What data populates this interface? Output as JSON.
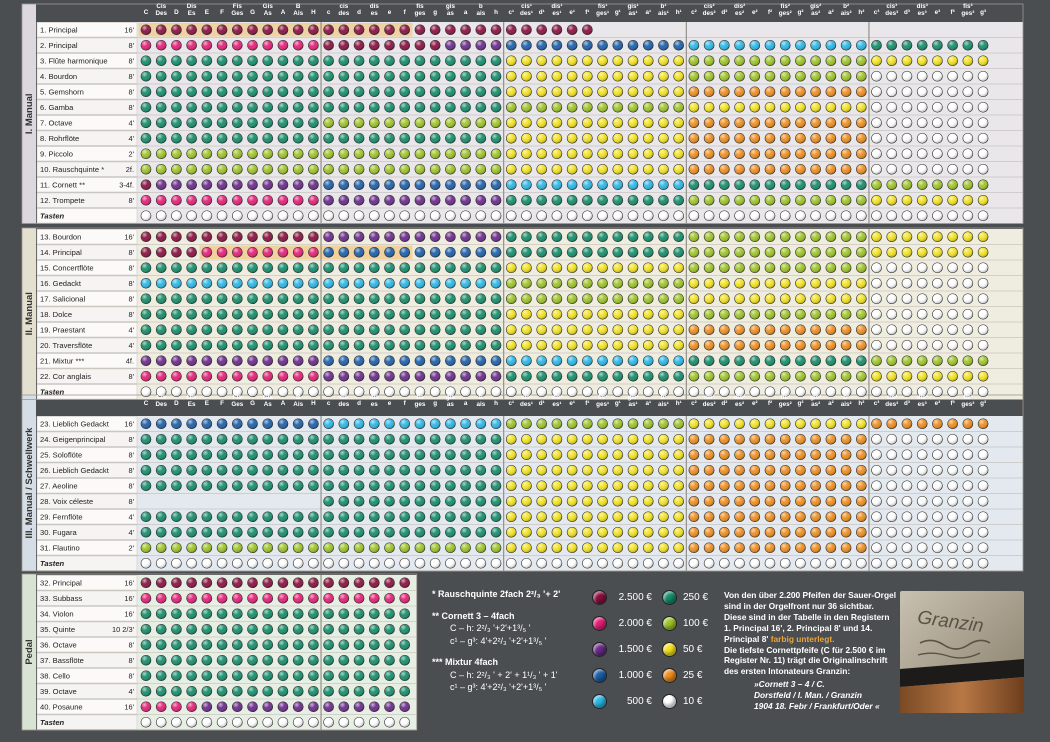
{
  "columns": [
    "C",
    "Cis Des",
    "D",
    "Dis Es",
    "E",
    "F",
    "Fis Ges",
    "G",
    "Gis As",
    "A",
    "B Ais",
    "H",
    "c",
    "cis des",
    "d",
    "dis es",
    "e",
    "f",
    "fis ges",
    "g",
    "gis as",
    "a",
    "b ais",
    "h",
    "c¹",
    "cis¹ des¹",
    "d¹",
    "dis¹ es¹",
    "e¹",
    "f¹",
    "fis¹ ges¹",
    "g¹",
    "gis¹ as¹",
    "a¹",
    "b¹ ais¹",
    "h¹",
    "c²",
    "cis² des²",
    "d²",
    "dis² es²",
    "e²",
    "f²",
    "fis² ges²",
    "g²",
    "gis² as²",
    "a²",
    "b² ais²",
    "h²",
    "c³",
    "cis³ des³",
    "d³",
    "dis³ es³",
    "e³",
    "f³",
    "fis³ ges³",
    "g³"
  ],
  "palette": {
    "2500": "#8a0f3f",
    "2000": "#e41f76",
    "1500": "#6a2a8a",
    "1000": "#1c5fa9",
    "500": "#2ab7e6",
    "250": "#148d6a",
    "100": "#9dc427",
    "50": "#f2e21f",
    "25": "#ef8d1e",
    "10": "#ffffff"
  },
  "manuals": [
    {
      "label": "I. Manual",
      "rows": [
        {
          "name": "1. Principal",
          "foot": "16'",
          "pattern": [
            [
              0,
              "2500"
            ]
          ],
          "extent": 30,
          "highlight": true
        },
        {
          "name": "2. Principal",
          "foot": "8'",
          "pattern": [
            [
              0,
              "2000"
            ],
            [
              12,
              "2500"
            ],
            [
              20,
              "1500"
            ],
            [
              24,
              "1000"
            ],
            [
              36,
              "500"
            ],
            [
              48,
              "250"
            ]
          ]
        },
        {
          "name": "3. Flûte harmonique",
          "foot": "8'",
          "pattern": [
            [
              0,
              "250"
            ],
            [
              24,
              "50"
            ],
            [
              36,
              "100"
            ],
            [
              48,
              "50"
            ]
          ]
        },
        {
          "name": "4. Bourdon",
          "foot": "8'",
          "pattern": [
            [
              0,
              "250"
            ],
            [
              24,
              "50"
            ],
            [
              36,
              "100"
            ],
            [
              48,
              "10"
            ]
          ]
        },
        {
          "name": "5. Gemshorn",
          "foot": "8'",
          "pattern": [
            [
              0,
              "250"
            ],
            [
              24,
              "50"
            ],
            [
              36,
              "25"
            ],
            [
              48,
              "10"
            ]
          ]
        },
        {
          "name": "6. Gamba",
          "foot": "8'",
          "pattern": [
            [
              0,
              "250"
            ],
            [
              24,
              "100"
            ],
            [
              36,
              "50"
            ],
            [
              48,
              "10"
            ]
          ]
        },
        {
          "name": "7. Octave",
          "foot": "4'",
          "pattern": [
            [
              0,
              "250"
            ],
            [
              12,
              "100"
            ],
            [
              24,
              "50"
            ],
            [
              36,
              "25"
            ],
            [
              48,
              "10"
            ]
          ]
        },
        {
          "name": "8. Rohrflöte",
          "foot": "4'",
          "pattern": [
            [
              0,
              "250"
            ],
            [
              24,
              "50"
            ],
            [
              36,
              "25"
            ],
            [
              48,
              "10"
            ]
          ]
        },
        {
          "name": "9. Piccolo",
          "foot": "2'",
          "pattern": [
            [
              0,
              "100"
            ],
            [
              24,
              "50"
            ],
            [
              36,
              "25"
            ],
            [
              48,
              "10"
            ]
          ]
        },
        {
          "name": "10. Rauschquinte *",
          "foot": "2f.",
          "pattern": [
            [
              0,
              "100"
            ],
            [
              24,
              "50"
            ],
            [
              36,
              "25"
            ],
            [
              48,
              "10"
            ]
          ]
        },
        {
          "name": "11. Cornett **",
          "foot": "3-4f.",
          "pattern": [
            [
              0,
              "2500"
            ],
            [
              1,
              "1500"
            ],
            [
              12,
              "1000"
            ],
            [
              24,
              "500"
            ],
            [
              36,
              "250"
            ],
            [
              48,
              "100"
            ]
          ]
        },
        {
          "name": "12. Trompete",
          "foot": "8'",
          "pattern": [
            [
              0,
              "2000"
            ],
            [
              12,
              "1500"
            ],
            [
              24,
              "250"
            ],
            [
              36,
              "100"
            ],
            [
              48,
              "50"
            ]
          ]
        },
        {
          "name": "Tasten",
          "foot": "",
          "pattern": [
            [
              0,
              "10"
            ]
          ],
          "keys": true
        }
      ]
    },
    {
      "label": "II. Manual",
      "rows": [
        {
          "name": "13. Bourdon",
          "foot": "16'",
          "pattern": [
            [
              0,
              "2500"
            ],
            [
              12,
              "1500"
            ],
            [
              24,
              "250"
            ],
            [
              36,
              "100"
            ],
            [
              48,
              "50"
            ]
          ]
        },
        {
          "name": "14. Principal",
          "foot": "8'",
          "pattern": [
            [
              0,
              "2500"
            ],
            [
              4,
              "2000"
            ],
            [
              12,
              "1000"
            ],
            [
              24,
              "250"
            ],
            [
              36,
              "100"
            ],
            [
              48,
              "50"
            ]
          ],
          "highlight": true,
          "hlFrom": 4,
          "hlTo": 17
        },
        {
          "name": "15. Concertflöte",
          "foot": "8'",
          "pattern": [
            [
              0,
              "250"
            ],
            [
              24,
              "50"
            ],
            [
              36,
              "100"
            ],
            [
              48,
              "10"
            ]
          ]
        },
        {
          "name": "16. Gedackt",
          "foot": "8'",
          "pattern": [
            [
              0,
              "500"
            ],
            [
              24,
              "100"
            ],
            [
              36,
              "50"
            ],
            [
              48,
              "10"
            ]
          ]
        },
        {
          "name": "17. Salicional",
          "foot": "8'",
          "pattern": [
            [
              0,
              "250"
            ],
            [
              24,
              "100"
            ],
            [
              36,
              "50"
            ],
            [
              48,
              "10"
            ]
          ]
        },
        {
          "name": "18. Dolce",
          "foot": "8'",
          "pattern": [
            [
              0,
              "250"
            ],
            [
              24,
              "50"
            ],
            [
              36,
              "100"
            ],
            [
              48,
              "10"
            ]
          ]
        },
        {
          "name": "19. Praestant",
          "foot": "4'",
          "pattern": [
            [
              0,
              "250"
            ],
            [
              24,
              "50"
            ],
            [
              36,
              "25"
            ],
            [
              48,
              "10"
            ]
          ]
        },
        {
          "name": "20. Traversflöte",
          "foot": "4'",
          "pattern": [
            [
              0,
              "250"
            ],
            [
              24,
              "50"
            ],
            [
              36,
              "25"
            ],
            [
              48,
              "10"
            ]
          ]
        },
        {
          "name": "21. Mixtur ***",
          "foot": "4f.",
          "pattern": [
            [
              0,
              "1500"
            ],
            [
              12,
              "1000"
            ],
            [
              24,
              "500"
            ],
            [
              36,
              "250"
            ],
            [
              48,
              "100"
            ]
          ]
        },
        {
          "name": "22. Cor anglais",
          "foot": "8'",
          "pattern": [
            [
              0,
              "2000"
            ],
            [
              12,
              "1500"
            ],
            [
              24,
              "250"
            ],
            [
              36,
              "100"
            ],
            [
              48,
              "50"
            ]
          ]
        },
        {
          "name": "Tasten",
          "foot": "",
          "pattern": [
            [
              0,
              "10"
            ]
          ],
          "keys": true
        }
      ]
    },
    {
      "label": "III. Manual / Schwellwerk",
      "rows": [
        {
          "name": "23. Lieblich Gedackt",
          "foot": "16'",
          "pattern": [
            [
              0,
              "1000"
            ],
            [
              12,
              "500"
            ],
            [
              24,
              "100"
            ],
            [
              36,
              "50"
            ],
            [
              48,
              "25"
            ]
          ]
        },
        {
          "name": "24. Geigenprincipal",
          "foot": "8'",
          "pattern": [
            [
              0,
              "250"
            ],
            [
              24,
              "50"
            ],
            [
              36,
              "25"
            ],
            [
              48,
              "10"
            ]
          ]
        },
        {
          "name": "25. Soloflöte",
          "foot": "8'",
          "pattern": [
            [
              0,
              "250"
            ],
            [
              24,
              "50"
            ],
            [
              36,
              "25"
            ],
            [
              48,
              "10"
            ]
          ]
        },
        {
          "name": "26. Lieblich Gedackt",
          "foot": "8'",
          "pattern": [
            [
              0,
              "250"
            ],
            [
              24,
              "50"
            ],
            [
              36,
              "25"
            ],
            [
              48,
              "10"
            ]
          ]
        },
        {
          "name": "27. Aeoline",
          "foot": "8'",
          "pattern": [
            [
              0,
              "250"
            ],
            [
              24,
              "50"
            ],
            [
              36,
              "25"
            ],
            [
              48,
              "10"
            ]
          ]
        },
        {
          "name": "28. Voix céleste",
          "foot": "8'",
          "pattern": [
            [
              0,
              "250"
            ],
            [
              24,
              "50"
            ],
            [
              36,
              "25"
            ],
            [
              48,
              "10"
            ]
          ],
          "start": 12
        },
        {
          "name": "29. Fernflöte",
          "foot": "4'",
          "pattern": [
            [
              0,
              "250"
            ],
            [
              24,
              "50"
            ],
            [
              36,
              "25"
            ],
            [
              48,
              "10"
            ]
          ]
        },
        {
          "name": "30. Fugara",
          "foot": "4'",
          "pattern": [
            [
              0,
              "250"
            ],
            [
              24,
              "50"
            ],
            [
              36,
              "25"
            ],
            [
              48,
              "10"
            ]
          ]
        },
        {
          "name": "31. Flautino",
          "foot": "2'",
          "pattern": [
            [
              0,
              "100"
            ],
            [
              24,
              "50"
            ],
            [
              36,
              "25"
            ],
            [
              48,
              "10"
            ]
          ]
        },
        {
          "name": "Tasten",
          "foot": "",
          "pattern": [
            [
              0,
              "10"
            ]
          ],
          "keys": true
        }
      ]
    },
    {
      "label": "Pedal",
      "short": true,
      "rows": [
        {
          "name": "32. Principal",
          "foot": "16'",
          "pattern": [
            [
              0,
              "2500"
            ]
          ]
        },
        {
          "name": "33. Subbass",
          "foot": "16'",
          "pattern": [
            [
              0,
              "2000"
            ]
          ]
        },
        {
          "name": "34. Violon",
          "foot": "16'",
          "pattern": [
            [
              0,
              "250"
            ]
          ]
        },
        {
          "name": "35. Quinte",
          "foot": "10 2/3'",
          "pattern": [
            [
              0,
              "250"
            ]
          ]
        },
        {
          "name": "36. Octave",
          "foot": "8'",
          "pattern": [
            [
              0,
              "250"
            ]
          ]
        },
        {
          "name": "37. Bassflöte",
          "foot": "8'",
          "pattern": [
            [
              0,
              "250"
            ]
          ]
        },
        {
          "name": "38. Cello",
          "foot": "8'",
          "pattern": [
            [
              0,
              "250"
            ]
          ]
        },
        {
          "name": "39. Octave",
          "foot": "4'",
          "pattern": [
            [
              0,
              "250"
            ]
          ]
        },
        {
          "name": "40. Posaune",
          "foot": "16'",
          "pattern": [
            [
              0,
              "2000"
            ],
            [
              4,
              "1500"
            ]
          ]
        },
        {
          "name": "Tasten",
          "foot": "",
          "pattern": [
            [
              0,
              "10"
            ]
          ],
          "keys": true
        }
      ]
    }
  ],
  "notes": {
    "rausch": "* Rauschquinte 2fach 2²/₃ '+ 2'",
    "cornett_title": "** Cornett 3 – 4fach",
    "cornett_1": "C – h: 2²/₃ '+2'+1³/₅ '",
    "cornett_2": "c¹ – g³: 4'+2²/₃ '+2'+1³/₅ '",
    "mixtur_title": "*** Mixtur 4fach",
    "mixtur_1": "C – h: 2²/₃ ' + 2' + 1¹/₃ ' + 1'",
    "mixtur_2": "c¹ – g³: 4'+2²/₃ '+2'+1³/₅ '"
  },
  "legend": [
    {
      "key": "2500",
      "label": "2.500 €"
    },
    {
      "key": "2000",
      "label": "2.000 €"
    },
    {
      "key": "1500",
      "label": "1.500 €"
    },
    {
      "key": "1000",
      "label": "1.000 €"
    },
    {
      "key": "500",
      "label": "500 €"
    },
    {
      "key": "250",
      "label": "250 €"
    },
    {
      "key": "100",
      "label": "100 €"
    },
    {
      "key": "50",
      "label": "50 €"
    },
    {
      "key": "25",
      "label": "25 €"
    },
    {
      "key": "10",
      "label": "10 €"
    }
  ],
  "info": {
    "p1": "Von den über 2.200 Pfeifen der Sauer-Orgel sind in der Orgelfront nur 36 sichtbar. Diese sind in der Tabelle in den Registern 1. Principal 16', 2. Principal 8' und 14. Principal 8'",
    "p1_hl": "farbig unterlegt.",
    "p2": "Die tiefste Cornettpfeife (C für 2.500 € im Register Nr. 11) trägt die Originalinschrift des ersten Intonateurs Granzin:",
    "quote_1": "»Cornett 3 – 4 / C.",
    "quote_2": "Dorstfeld / I. Man. / Granzin",
    "quote_3": "1904 18. Febr / Frankfurt/Oder «"
  },
  "photo": {
    "inscription": "Granzin"
  }
}
